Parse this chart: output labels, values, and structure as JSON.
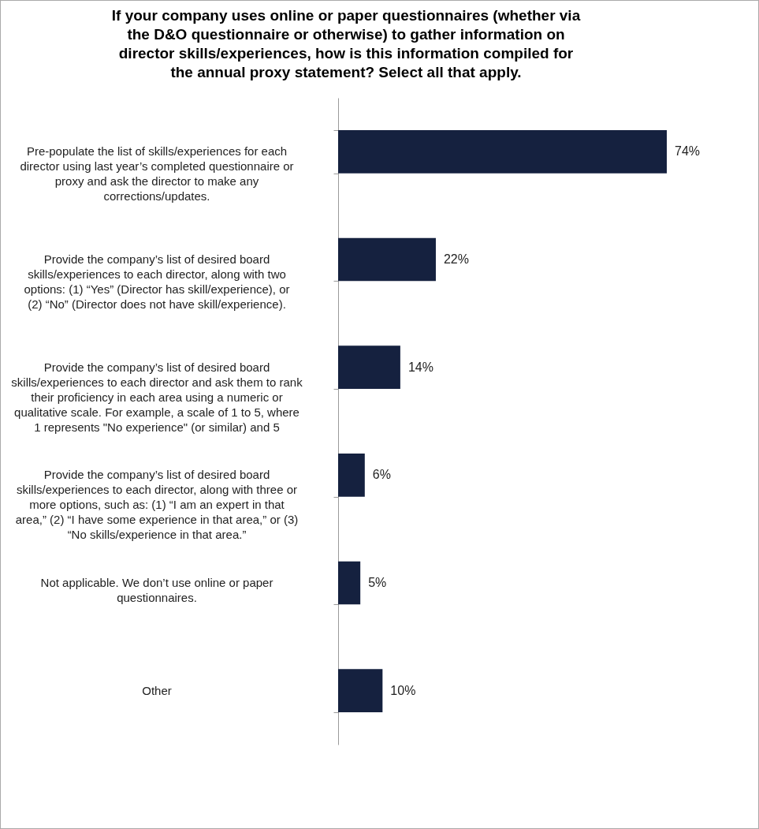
{
  "chart_data": {
    "type": "bar",
    "orientation": "horizontal",
    "title": "If your company uses online or paper questionnaires (whether via the D&O questionnaire or otherwise) to gather information on director skills/experiences, how is this information compiled for the annual proxy statement? Select all that apply.",
    "categories": [
      "Pre-populate the list of skills/experiences for each director using last year’s completed questionnaire or proxy and ask the director to make any corrections/updates.",
      "Provide the company’s list of desired board skills/experiences to each director, along with two options: (1) “Yes” (Director has skill/experience), or (2) “No” (Director does not have skill/experience).",
      "Provide the company’s list of desired board skills/experiences to each director and ask them to rank their proficiency in each area using a numeric or qualitative scale. For example, a scale of 1 to 5, where 1 represents \"No experience\" (or similar) and 5",
      "Provide the company’s list of desired board skills/experiences to each director, along with three or more options, such as: (1) “I am an expert in that area,” (2) “I have some experience in that area,” or (3) “No skills/experience in that area.”",
      "Not applicable. We don’t use online or paper questionnaires.",
      "Other"
    ],
    "values": [
      74,
      22,
      14,
      6,
      5,
      10
    ],
    "value_labels": [
      "74%",
      "22%",
      "14%",
      "6%",
      "5%",
      "10%"
    ],
    "color": "#15213f"
  }
}
